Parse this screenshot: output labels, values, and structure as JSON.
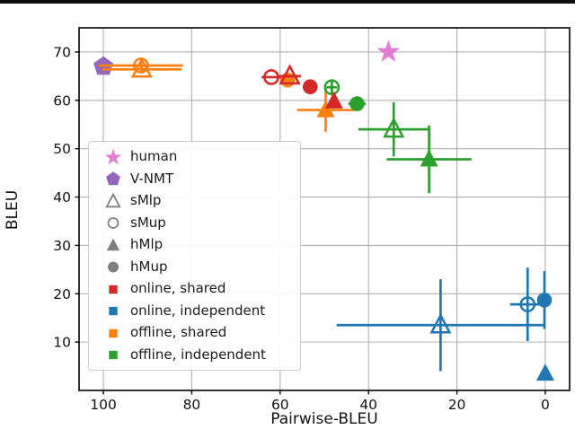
{
  "figure": {
    "top_rule": true
  },
  "chart_data": {
    "type": "scatter",
    "title": "",
    "xlabel": "Pairwise-BLEU",
    "ylabel": "BLEU",
    "x_axis_reversed": true,
    "grid": true,
    "xlim": [
      105.5,
      -5.5
    ],
    "ylim": [
      0,
      75
    ],
    "x_ticks": [
      100,
      80,
      60,
      40,
      20,
      0
    ],
    "y_ticks": [
      10,
      20,
      30,
      40,
      50,
      60,
      70
    ],
    "colors": {
      "human": "#e57bd2",
      "vnmt": "#9467bd",
      "neutral": "#7f7f7f",
      "online_shared": "#d62728",
      "online_independent": "#1f77b4",
      "offline_shared": "#ff7f0e",
      "offline_independent": "#2ca02c",
      "grid": "#b0b0b0",
      "spine": "#000000"
    },
    "legend_position": "center-left",
    "legend": [
      {
        "label": "human",
        "marker": "star",
        "fill": true,
        "color_key": "human"
      },
      {
        "label": "V-NMT",
        "marker": "pentagon",
        "fill": true,
        "color_key": "vnmt"
      },
      {
        "label": "sMlp",
        "marker": "triangle",
        "fill": false,
        "color_key": "neutral"
      },
      {
        "label": "sMup",
        "marker": "circle",
        "fill": false,
        "color_key": "neutral"
      },
      {
        "label": "hMlp",
        "marker": "triangle",
        "fill": true,
        "color_key": "neutral"
      },
      {
        "label": "hMup",
        "marker": "circle",
        "fill": true,
        "color_key": "neutral"
      },
      {
        "label": "online, shared",
        "marker": "square",
        "fill": true,
        "color_key": "online_shared"
      },
      {
        "label": "online, independent",
        "marker": "square",
        "fill": true,
        "color_key": "online_independent"
      },
      {
        "label": "offline, shared",
        "marker": "square",
        "fill": true,
        "color_key": "offline_shared"
      },
      {
        "label": "offline, independent",
        "marker": "square",
        "fill": true,
        "color_key": "offline_independent"
      }
    ],
    "points": [
      {
        "group": "human",
        "model": "human",
        "marker": "star",
        "fill": true,
        "color_key": "human",
        "x": 35.5,
        "y": 70,
        "xerr": 0,
        "yerr": 0
      },
      {
        "group": "V-NMT",
        "model": "V-NMT",
        "marker": "pentagon",
        "fill": true,
        "color_key": "vnmt",
        "x": 100,
        "y": 67,
        "xerr": 0,
        "yerr": 0
      },
      {
        "group": "offline, shared",
        "model": "sMup",
        "marker": "circle",
        "fill": false,
        "color_key": "offline_shared",
        "x": 91.5,
        "y": 67.2,
        "xerr": 9.5,
        "yerr": 0.8
      },
      {
        "group": "offline, shared",
        "model": "sMlp",
        "marker": "triangle",
        "fill": false,
        "color_key": "offline_shared",
        "x": 91.3,
        "y": 66.4,
        "xerr": 9,
        "yerr": 0.8
      },
      {
        "group": "offline, shared",
        "model": "hMup",
        "marker": "circle",
        "fill": true,
        "color_key": "offline_shared",
        "x": 58.3,
        "y": 64.2,
        "xerr": 1.5,
        "yerr": 0
      },
      {
        "group": "offline, shared",
        "model": "hMlp",
        "marker": "triangle",
        "fill": true,
        "color_key": "offline_shared",
        "x": 49.7,
        "y": 58,
        "xerr": 6.5,
        "yerr": 4.5
      },
      {
        "group": "offline, independent",
        "model": "sMup",
        "marker": "circle",
        "fill": false,
        "color_key": "offline_independent",
        "x": 48.3,
        "y": 62.7,
        "xerr": 1.2,
        "yerr": 1.6
      },
      {
        "group": "offline, independent",
        "model": "hMup",
        "marker": "circle",
        "fill": true,
        "color_key": "offline_independent",
        "x": 42.6,
        "y": 59.3,
        "xerr": 2,
        "yerr": 0
      },
      {
        "group": "offline, independent",
        "model": "sMlp",
        "marker": "triangle",
        "fill": false,
        "color_key": "offline_independent",
        "x": 34.3,
        "y": 54,
        "xerr": 8,
        "yerr": 5.6
      },
      {
        "group": "offline, independent",
        "model": "hMlp",
        "marker": "triangle",
        "fill": true,
        "color_key": "offline_independent",
        "x": 26.3,
        "y": 47.8,
        "xerr": 9.6,
        "yerr": 7
      },
      {
        "group": "online, shared",
        "model": "sMup",
        "marker": "circle",
        "fill": false,
        "color_key": "online_shared",
        "x": 62,
        "y": 64.8,
        "xerr": 2.2,
        "yerr": 0
      },
      {
        "group": "online, shared",
        "model": "sMlp",
        "marker": "triangle",
        "fill": false,
        "color_key": "online_shared",
        "x": 57.8,
        "y": 65,
        "xerr": 2.5,
        "yerr": 0
      },
      {
        "group": "online, shared",
        "model": "hMup",
        "marker": "circle",
        "fill": true,
        "color_key": "online_shared",
        "x": 53.2,
        "y": 62.8,
        "xerr": 0,
        "yerr": 0
      },
      {
        "group": "online, shared",
        "model": "hMlp",
        "marker": "triangle",
        "fill": true,
        "color_key": "online_shared",
        "x": 47.8,
        "y": 59.8,
        "xerr": 0,
        "yerr": 0
      },
      {
        "group": "online, independent",
        "model": "sMlp",
        "marker": "triangle",
        "fill": false,
        "color_key": "online_independent",
        "x": 23.7,
        "y": 13.5,
        "xerr": 23.5,
        "yerr": 9.5
      },
      {
        "group": "online, independent",
        "model": "sMup",
        "marker": "circle",
        "fill": false,
        "color_key": "online_independent",
        "x": 4,
        "y": 17.8,
        "xerr": 4,
        "yerr": 7.6
      },
      {
        "group": "online, independent",
        "model": "hMup",
        "marker": "circle",
        "fill": true,
        "color_key": "online_independent",
        "x": 0.2,
        "y": 18.7,
        "xerr": 0,
        "yerr": 6
      },
      {
        "group": "online, independent",
        "model": "hMlp",
        "marker": "triangle",
        "fill": true,
        "color_key": "online_independent",
        "x": 0,
        "y": 3.5,
        "xerr": 0,
        "yerr": 0
      }
    ]
  }
}
